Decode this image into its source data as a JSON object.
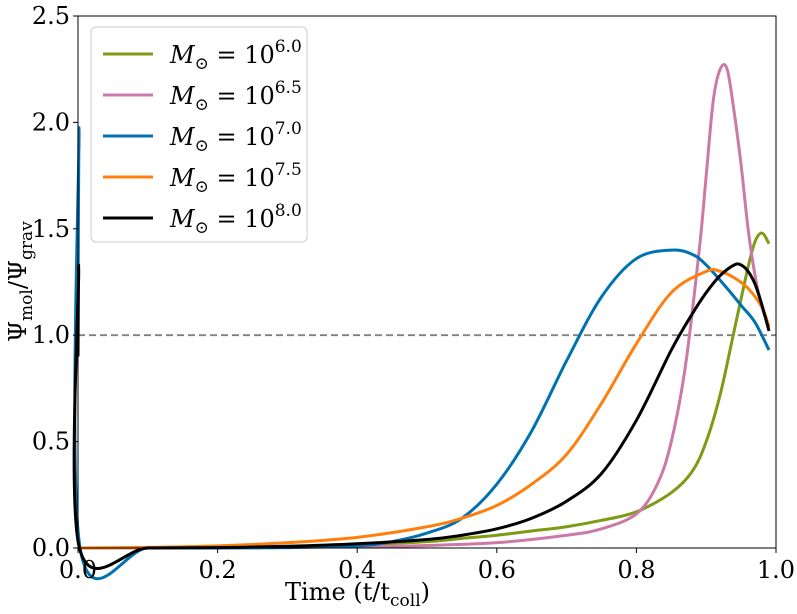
{
  "chart_data": {
    "type": "line",
    "xlabel_main": "Time (t/t",
    "xlabel_sub": "coll",
    "xlabel_close": ")",
    "ylabel_psi1": "Ψ",
    "ylabel_sub1": "mol",
    "ylabel_slash": "/Ψ",
    "ylabel_sub2": "grav",
    "xlim": [
      0.0,
      1.0
    ],
    "ylim": [
      0.0,
      2.5
    ],
    "xticks": [
      "0.0",
      "0.2",
      "0.4",
      "0.6",
      "0.8",
      "1.0"
    ],
    "yticks": [
      "0.0",
      "0.5",
      "1.0",
      "1.5",
      "2.0",
      "2.5"
    ],
    "reference_line": {
      "y": 1.0,
      "style": "dashed",
      "color": "#808080"
    },
    "legend_position": "upper-left",
    "legend_prefix": "M",
    "legend_sub": "⊙",
    "legend_eq": " = 10",
    "series": [
      {
        "name": "M⊙ = 10^6.0",
        "exponent": "6.0",
        "color": "#7f9a14",
        "x": [
          0.0,
          0.1,
          0.2,
          0.3,
          0.4,
          0.5,
          0.55,
          0.6,
          0.65,
          0.7,
          0.75,
          0.8,
          0.85,
          0.88,
          0.9,
          0.92,
          0.94,
          0.96,
          0.97,
          0.98,
          0.99
        ],
        "y": [
          0.0,
          0.0,
          0.002,
          0.006,
          0.015,
          0.03,
          0.045,
          0.06,
          0.08,
          0.1,
          0.13,
          0.17,
          0.26,
          0.36,
          0.5,
          0.72,
          1.02,
          1.32,
          1.44,
          1.48,
          1.43
        ]
      },
      {
        "name": "M⊙ = 10^6.5",
        "exponent": "6.5",
        "color": "#cc79a7",
        "x": [
          0.0,
          0.1,
          0.2,
          0.3,
          0.4,
          0.5,
          0.6,
          0.7,
          0.75,
          0.8,
          0.83,
          0.85,
          0.87,
          0.89,
          0.9,
          0.91,
          0.92,
          0.93,
          0.94,
          0.95,
          0.96,
          0.97,
          0.98,
          0.99
        ],
        "y": [
          0.0,
          0.0,
          0.001,
          0.003,
          0.006,
          0.012,
          0.025,
          0.06,
          0.09,
          0.16,
          0.3,
          0.5,
          0.85,
          1.4,
          1.75,
          2.1,
          2.25,
          2.25,
          2.05,
          1.8,
          1.5,
          1.28,
          1.13,
          1.04
        ]
      },
      {
        "name": "M⊙ = 10^7.0",
        "exponent": "7.0",
        "color": "#0072b2",
        "x": [
          0.0,
          0.0015,
          0.003,
          0.1,
          0.2,
          0.3,
          0.4,
          0.45,
          0.5,
          0.55,
          0.6,
          0.65,
          0.7,
          0.75,
          0.8,
          0.85,
          0.88,
          0.9,
          0.93,
          0.95,
          0.97,
          0.99
        ],
        "y": [
          1.1,
          1.95,
          0.0,
          0.0,
          0.0,
          0.002,
          0.01,
          0.03,
          0.07,
          0.14,
          0.3,
          0.55,
          0.88,
          1.18,
          1.36,
          1.4,
          1.38,
          1.33,
          1.22,
          1.14,
          1.06,
          0.93
        ]
      },
      {
        "name": "M⊙ = 10^7.5",
        "exponent": "7.5",
        "color": "#ff7f0e",
        "x": [
          0.0,
          0.1,
          0.2,
          0.3,
          0.4,
          0.5,
          0.55,
          0.6,
          0.65,
          0.7,
          0.75,
          0.8,
          0.85,
          0.9,
          0.92,
          0.94,
          0.96,
          0.98,
          0.99
        ],
        "y": [
          0.0,
          0.003,
          0.01,
          0.025,
          0.05,
          0.1,
          0.14,
          0.2,
          0.3,
          0.44,
          0.68,
          0.96,
          1.2,
          1.3,
          1.3,
          1.27,
          1.22,
          1.13,
          1.04
        ]
      },
      {
        "name": "M⊙ = 10^8.0",
        "exponent": "8.0",
        "color": "#000000",
        "x": [
          0.0,
          0.001,
          0.002,
          0.1,
          0.2,
          0.3,
          0.4,
          0.5,
          0.55,
          0.6,
          0.65,
          0.7,
          0.75,
          0.8,
          0.85,
          0.88,
          0.9,
          0.92,
          0.94,
          0.95,
          0.96,
          0.97,
          0.98,
          0.99
        ],
        "y": [
          0.9,
          1.3,
          0.0,
          0.0,
          0.002,
          0.008,
          0.02,
          0.04,
          0.06,
          0.09,
          0.14,
          0.22,
          0.35,
          0.6,
          0.93,
          1.1,
          1.2,
          1.28,
          1.33,
          1.33,
          1.3,
          1.24,
          1.14,
          1.02
        ]
      }
    ]
  }
}
